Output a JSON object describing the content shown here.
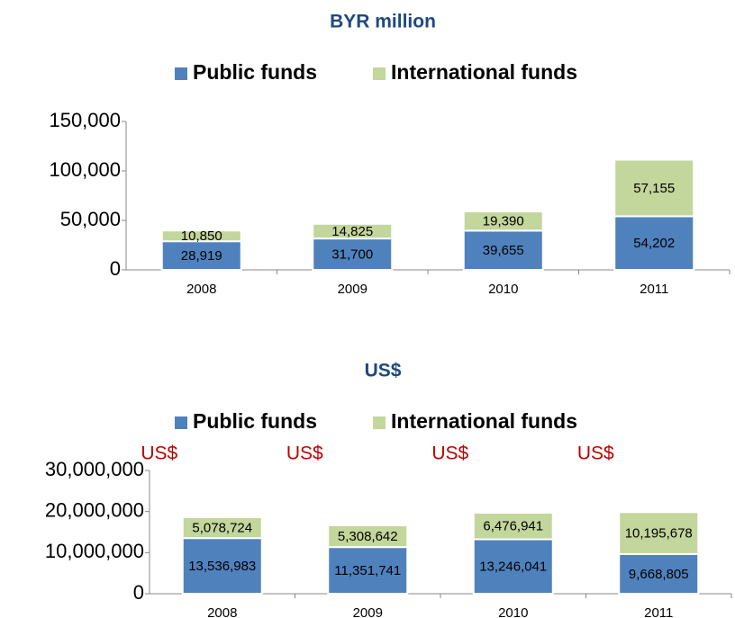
{
  "chart_data": [
    {
      "type": "stacked_bar",
      "title": "BYR million",
      "categories": [
        "2008",
        "2009",
        "2010",
        "2011"
      ],
      "series": [
        {
          "name": "Public funds",
          "color": "#4f81bd",
          "values": [
            28919,
            31700,
            39655,
            54202
          ],
          "value_labels": [
            "28,919",
            "31,700",
            "39,655",
            "54,202"
          ]
        },
        {
          "name": "International funds",
          "color": "#c3d69b",
          "values": [
            10850,
            14825,
            19390,
            57155
          ],
          "value_labels": [
            "10,850",
            "14,825",
            "19,390",
            "57,155"
          ]
        }
      ],
      "ylim": [
        0,
        150000
      ],
      "yticks": [
        0,
        {
          "value": 50000,
          "label": "50,000"
        },
        {
          "value": 100000,
          "label": "100,000"
        },
        {
          "value": 150000,
          "label": "150,000"
        }
      ],
      "grid": false
    },
    {
      "type": "stacked_bar",
      "title": "US$",
      "categories": [
        "2008",
        "2009",
        "2010",
        "2011"
      ],
      "series": [
        {
          "name": "Public funds",
          "color": "#4f81bd",
          "values": [
            13536983,
            11351741,
            13246041,
            9668805
          ],
          "value_labels": [
            "13,536,983",
            "11,351,741",
            "13,246,041",
            "9,668,805"
          ]
        },
        {
          "name": "International funds",
          "color": "#c3d69b",
          "values": [
            5078724,
            5308642,
            6476941,
            10195678
          ],
          "value_labels": [
            "5,078,724",
            "5,308,642",
            "6,476,941",
            "10,195,678"
          ]
        }
      ],
      "annotations": [
        "US$",
        "US$",
        "US$",
        "US$"
      ],
      "annotation_color": "#c00000",
      "ylim": [
        0,
        30000000
      ],
      "yticks": [
        0,
        {
          "value": 10000000,
          "label": "10,000,000"
        },
        {
          "value": 20000000,
          "label": "20,000,000"
        },
        {
          "value": 30000000,
          "label": "30,000,000"
        }
      ],
      "grid": false
    }
  ]
}
